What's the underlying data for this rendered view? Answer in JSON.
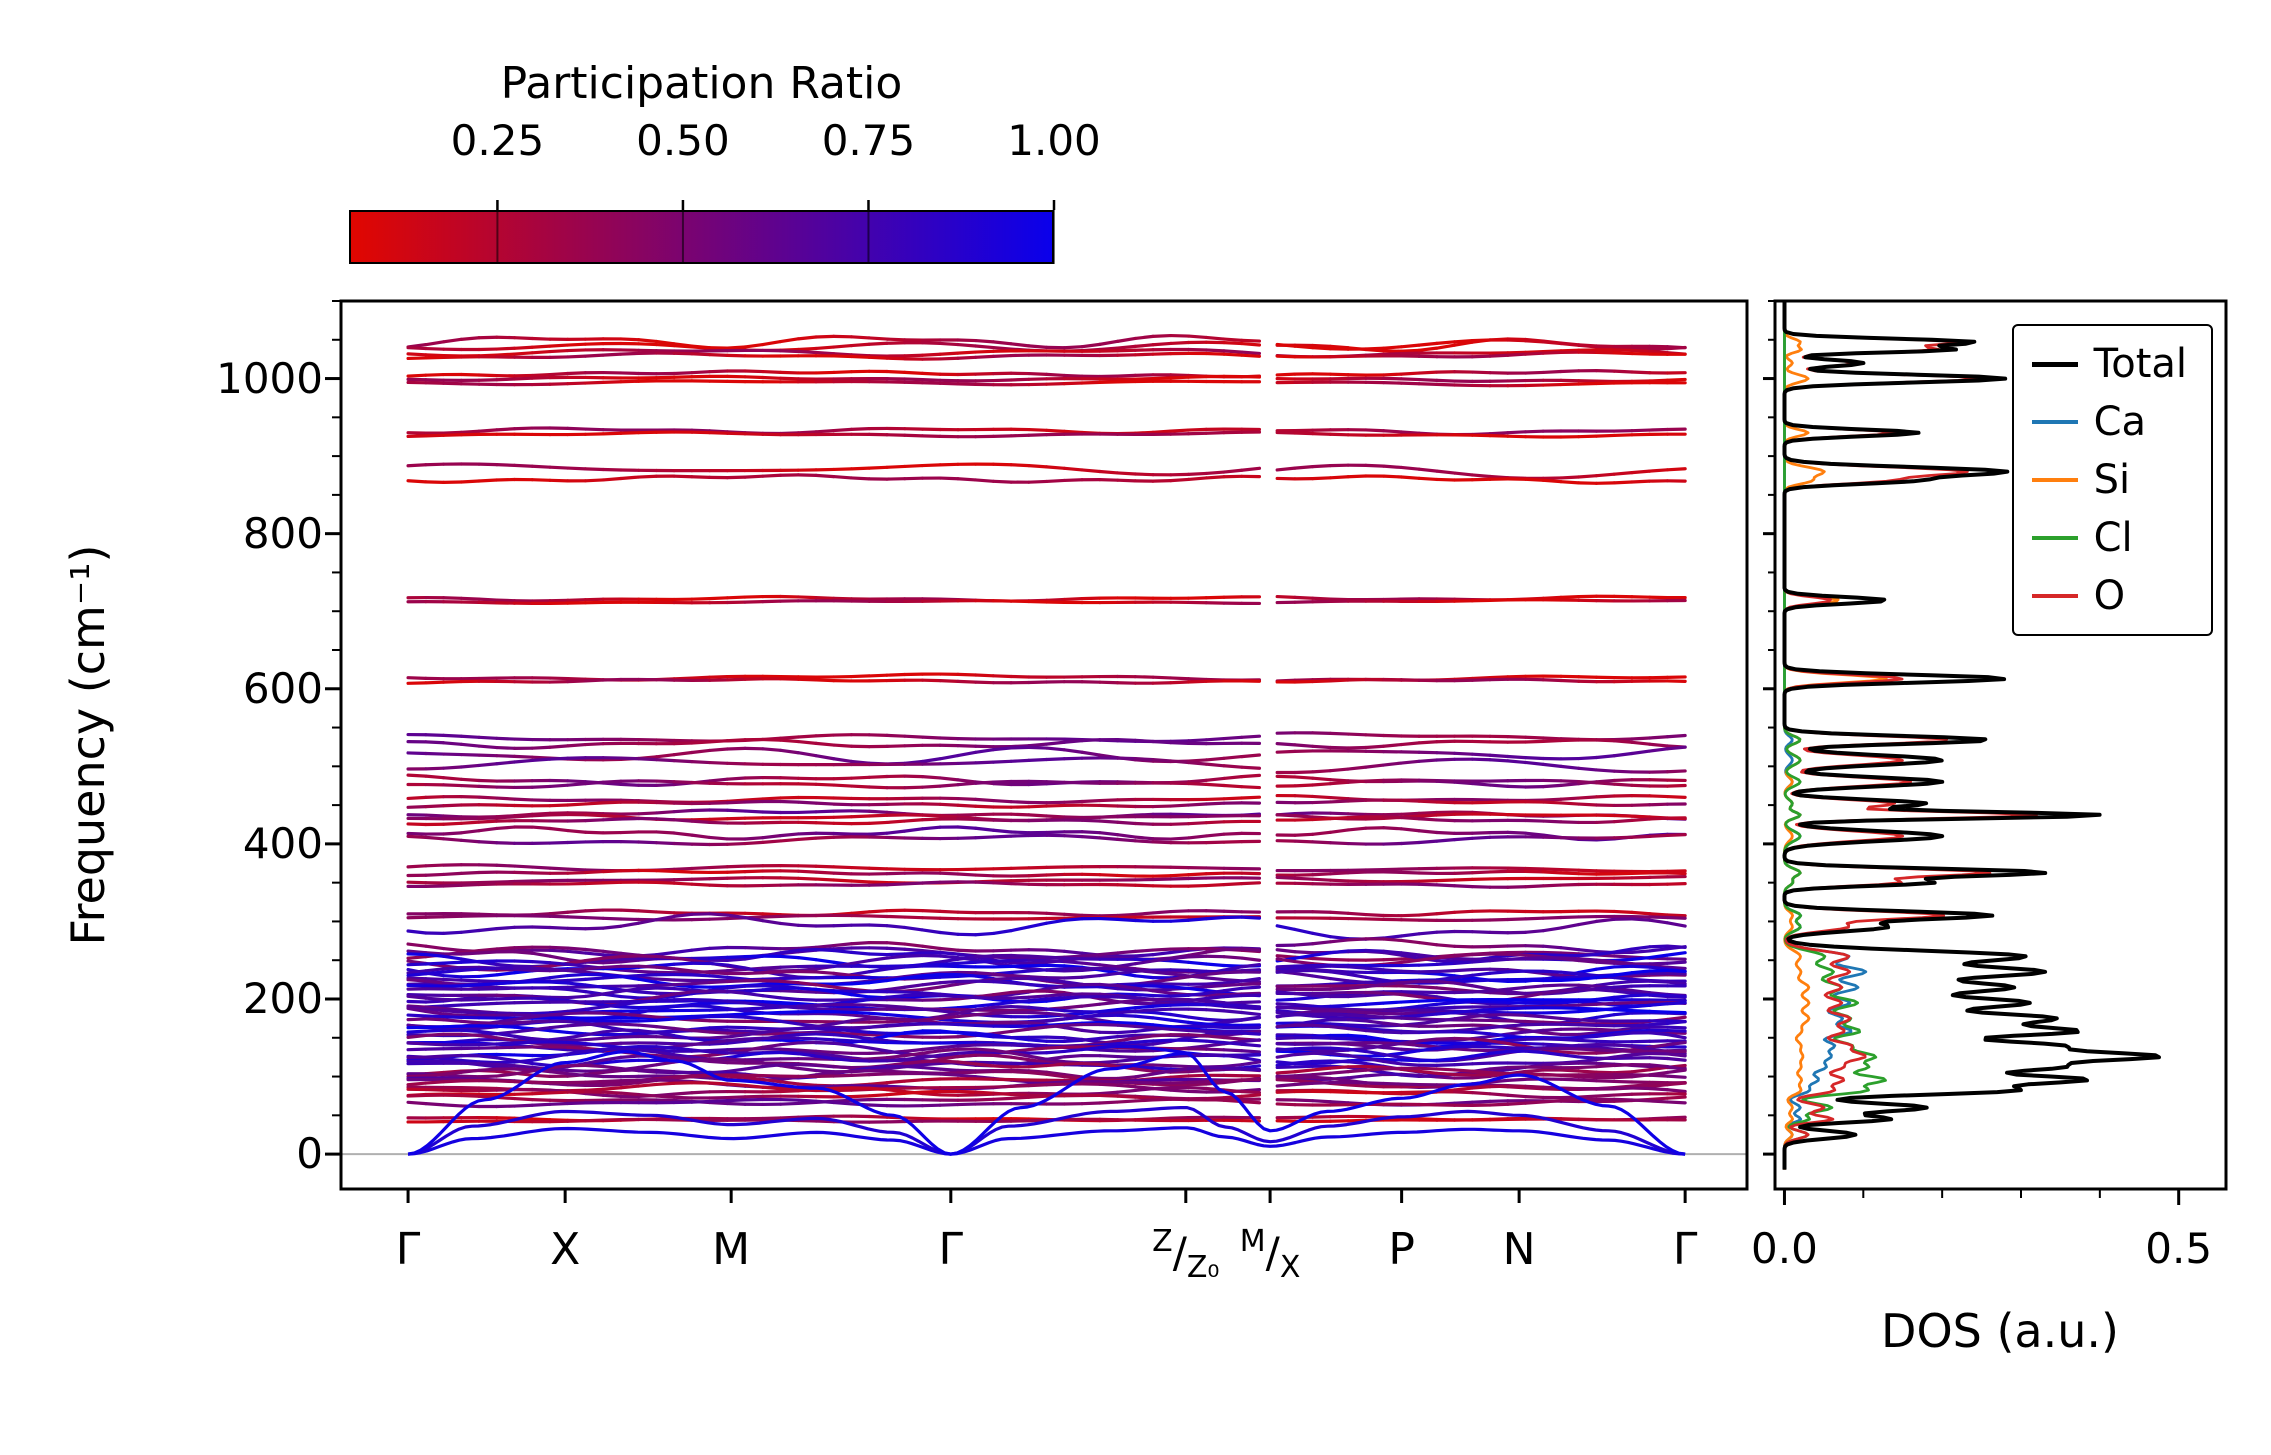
{
  "chart_data": {
    "type": "line",
    "description_visible": "Phonon band structure colored by participation ratio with element-projected density of states",
    "colorbar": {
      "title": "Participation Ratio",
      "tick_labels": [
        "0.25",
        "0.50",
        "0.75",
        "1.00"
      ],
      "tick_values": [
        0.25,
        0.5,
        0.75,
        1.0
      ],
      "vmin": 0.05,
      "vmax": 1.0,
      "color_low": "#e10600",
      "color_high": "#0a00eb"
    },
    "band_panel": {
      "ylabel": "Frequency (cm⁻¹)",
      "ylim": [
        -45,
        1100
      ],
      "yticks": [
        0,
        200,
        400,
        600,
        800,
        1000
      ],
      "ytick_minor_step": 50,
      "zero_line_color": "#b0b0b0",
      "kpoints": [
        {
          "label": "Γ",
          "pos": 0.0
        },
        {
          "label": "X",
          "pos": 0.123
        },
        {
          "label": "M",
          "pos": 0.253
        },
        {
          "label": "Γ",
          "pos": 0.425
        },
        {
          "label": "Z|Z₀",
          "pos": 0.609
        },
        {
          "label": "M|X",
          "pos": 0.675
        },
        {
          "label": "P",
          "pos": 0.778
        },
        {
          "label": "N",
          "pos": 0.87
        },
        {
          "label": "Γ",
          "pos": 1.0
        }
      ],
      "discontinuity_pos": 0.675,
      "bands": [
        {
          "f": 1048,
          "a": 9,
          "p": 0.22
        },
        {
          "f": 1041,
          "a": 6,
          "p": 0.18
        },
        {
          "f": 1034,
          "a": 5,
          "p": 0.26
        },
        {
          "f": 1029,
          "a": 4,
          "p": 0.2
        },
        {
          "f": 1006,
          "a": 4,
          "p": 0.2
        },
        {
          "f": 1000,
          "a": 3,
          "p": 0.22
        },
        {
          "f": 995,
          "a": 3,
          "p": 0.18
        },
        {
          "f": 933,
          "a": 4,
          "p": 0.28
        },
        {
          "f": 928,
          "a": 3,
          "p": 0.22
        },
        {
          "f": 884,
          "a": 9,
          "p": 0.22
        },
        {
          "f": 871,
          "a": 5,
          "p": 0.2
        },
        {
          "f": 716,
          "a": 3,
          "p": 0.2
        },
        {
          "f": 712,
          "a": 2,
          "p": 0.22
        },
        {
          "f": 615,
          "a": 4,
          "p": 0.2
        },
        {
          "f": 610,
          "a": 3,
          "p": 0.24
        },
        {
          "f": 536,
          "a": 5,
          "p": 0.48
        },
        {
          "f": 529,
          "a": 6,
          "p": 0.44
        },
        {
          "f": 514,
          "a": 11,
          "p": 0.52
        },
        {
          "f": 505,
          "a": 9,
          "p": 0.5
        },
        {
          "f": 482,
          "a": 7,
          "p": 0.42
        },
        {
          "f": 477,
          "a": 5,
          "p": 0.38
        },
        {
          "f": 457,
          "a": 4,
          "p": 0.3
        },
        {
          "f": 451,
          "a": 4,
          "p": 0.34
        },
        {
          "f": 439,
          "a": 5,
          "p": 0.5
        },
        {
          "f": 434,
          "a": 4,
          "p": 0.3
        },
        {
          "f": 429,
          "a": 4,
          "p": 0.34
        },
        {
          "f": 414,
          "a": 8,
          "p": 0.52
        },
        {
          "f": 405,
          "a": 7,
          "p": 0.48
        },
        {
          "f": 369,
          "a": 5,
          "p": 0.3
        },
        {
          "f": 362,
          "a": 4,
          "p": 0.26
        },
        {
          "f": 353,
          "a": 4,
          "p": 0.3
        },
        {
          "f": 348,
          "a": 3,
          "p": 0.34
        },
        {
          "f": 311,
          "a": 4,
          "p": 0.3
        },
        {
          "f": 305,
          "a": 3,
          "p": 0.34
        },
        {
          "f": 296,
          "a": 14,
          "p": 0.78
        },
        {
          "f": 264,
          "a": 9,
          "p": 0.6
        },
        {
          "f": 259,
          "a": 9,
          "p": 0.55
        },
        {
          "f": 255,
          "a": 10,
          "p": 0.7
        },
        {
          "f": 250,
          "a": 9,
          "p": 0.85
        },
        {
          "f": 246,
          "a": 10,
          "p": 0.6
        },
        {
          "f": 242,
          "a": 9,
          "p": 0.75
        },
        {
          "f": 238,
          "a": 11,
          "p": 0.9
        },
        {
          "f": 234,
          "a": 9,
          "p": 0.65
        },
        {
          "f": 230,
          "a": 10,
          "p": 0.8
        },
        {
          "f": 226,
          "a": 9,
          "p": 0.7
        },
        {
          "f": 222,
          "a": 10,
          "p": 0.9
        },
        {
          "f": 218,
          "a": 9,
          "p": 0.6
        },
        {
          "f": 214,
          "a": 10,
          "p": 0.8
        },
        {
          "f": 210,
          "a": 9,
          "p": 0.72
        },
        {
          "f": 206,
          "a": 10,
          "p": 0.88
        },
        {
          "f": 202,
          "a": 9,
          "p": 0.62
        },
        {
          "f": 198,
          "a": 10,
          "p": 0.8
        },
        {
          "f": 194,
          "a": 9,
          "p": 0.9
        },
        {
          "f": 190,
          "a": 10,
          "p": 0.68
        },
        {
          "f": 186,
          "a": 9,
          "p": 0.82
        },
        {
          "f": 182,
          "a": 10,
          "p": 0.75
        },
        {
          "f": 178,
          "a": 9,
          "p": 0.9
        },
        {
          "f": 174,
          "a": 10,
          "p": 0.6
        },
        {
          "f": 170,
          "a": 9,
          "p": 0.8
        },
        {
          "f": 166,
          "a": 10,
          "p": 0.7
        },
        {
          "f": 162,
          "a": 9,
          "p": 0.88
        },
        {
          "f": 158,
          "a": 10,
          "p": 0.62
        },
        {
          "f": 154,
          "a": 9,
          "p": 0.78
        },
        {
          "f": 150,
          "a": 10,
          "p": 0.9
        },
        {
          "f": 146,
          "a": 9,
          "p": 0.65
        },
        {
          "f": 142,
          "a": 10,
          "p": 0.8
        },
        {
          "f": 138,
          "a": 9,
          "p": 0.72
        },
        {
          "f": 134,
          "a": 10,
          "p": 0.55
        },
        {
          "f": 130,
          "a": 9,
          "p": 0.85
        },
        {
          "f": 126,
          "a": 10,
          "p": 0.68
        },
        {
          "f": 122,
          "a": 9,
          "p": 0.78
        },
        {
          "f": 118,
          "a": 10,
          "p": 0.6
        },
        {
          "f": 114,
          "a": 9,
          "p": 0.72
        },
        {
          "f": 110,
          "a": 10,
          "p": 0.5
        },
        {
          "f": 106,
          "a": 9,
          "p": 0.65
        },
        {
          "f": 102,
          "a": 8,
          "p": 0.45
        },
        {
          "f": 98,
          "a": 8,
          "p": 0.55
        },
        {
          "f": 94,
          "a": 7,
          "p": 0.42
        },
        {
          "f": 90,
          "a": 7,
          "p": 0.5
        },
        {
          "f": 86,
          "a": 6,
          "p": 0.4
        },
        {
          "f": 80,
          "a": 6,
          "p": 0.35
        },
        {
          "f": 76,
          "a": 5,
          "p": 0.3
        },
        {
          "f": 70,
          "a": 6,
          "p": 0.45
        },
        {
          "f": 66,
          "a": 5,
          "p": 0.5
        },
        {
          "f": 46,
          "a": 3,
          "p": 0.25
        },
        {
          "f": 43,
          "a": 2,
          "p": 0.28
        }
      ],
      "acoustic_bands": [
        {
          "p": 0.95,
          "points": [
            [
              0,
              0
            ],
            [
              0.05,
              20
            ],
            [
              0.123,
              33
            ],
            [
              0.19,
              28
            ],
            [
              0.253,
              20
            ],
            [
              0.32,
              28
            ],
            [
              0.38,
              18
            ],
            [
              0.425,
              0
            ],
            [
              0.47,
              20
            ],
            [
              0.55,
              30
            ],
            [
              0.609,
              34
            ],
            [
              0.64,
              22
            ],
            [
              0.675,
              10
            ],
            [
              0.72,
              22
            ],
            [
              0.778,
              28
            ],
            [
              0.83,
              32
            ],
            [
              0.87,
              30
            ],
            [
              0.94,
              18
            ],
            [
              1,
              0
            ]
          ]
        },
        {
          "p": 0.9,
          "points": [
            [
              0,
              0
            ],
            [
              0.05,
              36
            ],
            [
              0.123,
              55
            ],
            [
              0.19,
              50
            ],
            [
              0.253,
              38
            ],
            [
              0.32,
              46
            ],
            [
              0.38,
              28
            ],
            [
              0.425,
              0
            ],
            [
              0.47,
              36
            ],
            [
              0.55,
              55
            ],
            [
              0.609,
              60
            ],
            [
              0.64,
              35
            ],
            [
              0.675,
              16
            ],
            [
              0.72,
              36
            ],
            [
              0.778,
              48
            ],
            [
              0.83,
              55
            ],
            [
              0.87,
              50
            ],
            [
              0.94,
              30
            ],
            [
              1,
              0
            ]
          ]
        },
        {
          "p": 0.98,
          "points": [
            [
              0,
              0
            ],
            [
              0.06,
              70
            ],
            [
              0.123,
              118
            ],
            [
              0.17,
              132
            ],
            [
              0.21,
              120
            ],
            [
              0.253,
              95
            ],
            [
              0.32,
              85
            ],
            [
              0.38,
              50
            ],
            [
              0.425,
              0
            ],
            [
              0.48,
              60
            ],
            [
              0.55,
              110
            ],
            [
              0.609,
              130
            ],
            [
              0.64,
              80
            ],
            [
              0.675,
              30
            ],
            [
              0.72,
              55
            ],
            [
              0.778,
              72
            ],
            [
              0.83,
              90
            ],
            [
              0.87,
              102
            ],
            [
              0.94,
              62
            ],
            [
              1,
              0
            ]
          ]
        }
      ]
    },
    "dos_panel": {
      "xlabel": "DOS (a.u.)",
      "xlim": [
        -0.012,
        0.56
      ],
      "xticks": [
        {
          "label": "0.0",
          "value": 0.0
        },
        {
          "label": "0.5",
          "value": 0.5
        }
      ],
      "xtick_minor_step": 0.1,
      "legend": [
        {
          "label": "Total",
          "color": "#000000"
        },
        {
          "label": "Ca",
          "color": "#1f77b4"
        },
        {
          "label": "Si",
          "color": "#ff7f0e"
        },
        {
          "label": "Cl",
          "color": "#2ca02c"
        },
        {
          "label": "O",
          "color": "#d62728"
        }
      ],
      "peaks": [
        {
          "f": 1047,
          "w": 6,
          "total": 0.24,
          "ca": 0.0,
          "si": 0.02,
          "cl": 0.0,
          "o": 0.22
        },
        {
          "f": 1037,
          "w": 5,
          "total": 0.2,
          "ca": 0.0,
          "si": 0.02,
          "cl": 0.0,
          "o": 0.18
        },
        {
          "f": 1020,
          "w": 6,
          "total": 0.1,
          "ca": 0.0,
          "si": 0.01,
          "cl": 0.0,
          "o": 0.09
        },
        {
          "f": 1000,
          "w": 7,
          "total": 0.28,
          "ca": 0.0,
          "si": 0.03,
          "cl": 0.0,
          "o": 0.25
        },
        {
          "f": 930,
          "w": 6,
          "total": 0.17,
          "ca": 0.0,
          "si": 0.03,
          "cl": 0.0,
          "o": 0.14
        },
        {
          "f": 880,
          "w": 8,
          "total": 0.28,
          "ca": 0.0,
          "si": 0.05,
          "cl": 0.0,
          "o": 0.23
        },
        {
          "f": 868,
          "w": 6,
          "total": 0.14,
          "ca": 0.0,
          "si": 0.03,
          "cl": 0.0,
          "o": 0.11
        },
        {
          "f": 714,
          "w": 6,
          "total": 0.13,
          "ca": 0.0,
          "si": 0.07,
          "cl": 0.0,
          "o": 0.06
        },
        {
          "f": 613,
          "w": 7,
          "total": 0.28,
          "ca": 0.0,
          "si": 0.13,
          "cl": 0.0,
          "o": 0.15
        },
        {
          "f": 534,
          "w": 7,
          "total": 0.26,
          "ca": 0.01,
          "si": 0.02,
          "cl": 0.02,
          "o": 0.21
        },
        {
          "f": 508,
          "w": 9,
          "total": 0.2,
          "ca": 0.01,
          "si": 0.02,
          "cl": 0.02,
          "o": 0.15
        },
        {
          "f": 480,
          "w": 8,
          "total": 0.2,
          "ca": 0.01,
          "si": 0.01,
          "cl": 0.02,
          "o": 0.16
        },
        {
          "f": 452,
          "w": 7,
          "total": 0.18,
          "ca": 0.01,
          "si": 0.01,
          "cl": 0.01,
          "o": 0.14
        },
        {
          "f": 437,
          "w": 6,
          "total": 0.4,
          "ca": 0.02,
          "si": 0.02,
          "cl": 0.02,
          "o": 0.32
        },
        {
          "f": 410,
          "w": 9,
          "total": 0.2,
          "ca": 0.02,
          "si": 0.01,
          "cl": 0.02,
          "o": 0.15
        },
        {
          "f": 363,
          "w": 7,
          "total": 0.33,
          "ca": 0.02,
          "si": 0.02,
          "cl": 0.02,
          "o": 0.26
        },
        {
          "f": 350,
          "w": 6,
          "total": 0.18,
          "ca": 0.01,
          "si": 0.01,
          "cl": 0.01,
          "o": 0.14
        },
        {
          "f": 308,
          "w": 7,
          "total": 0.26,
          "ca": 0.02,
          "si": 0.01,
          "cl": 0.02,
          "o": 0.2
        },
        {
          "f": 293,
          "w": 8,
          "total": 0.13,
          "ca": 0.02,
          "si": 0.01,
          "cl": 0.02,
          "o": 0.08
        },
        {
          "f": 255,
          "w": 10,
          "total": 0.3,
          "ca": 0.08,
          "si": 0.02,
          "cl": 0.05,
          "o": 0.08
        },
        {
          "f": 235,
          "w": 10,
          "total": 0.32,
          "ca": 0.1,
          "si": 0.02,
          "cl": 0.06,
          "o": 0.08
        },
        {
          "f": 215,
          "w": 10,
          "total": 0.28,
          "ca": 0.09,
          "si": 0.03,
          "cl": 0.07,
          "o": 0.07
        },
        {
          "f": 195,
          "w": 10,
          "total": 0.3,
          "ca": 0.08,
          "si": 0.03,
          "cl": 0.09,
          "o": 0.07
        },
        {
          "f": 175,
          "w": 10,
          "total": 0.33,
          "ca": 0.07,
          "si": 0.03,
          "cl": 0.08,
          "o": 0.08
        },
        {
          "f": 158,
          "w": 9,
          "total": 0.35,
          "ca": 0.08,
          "si": 0.02,
          "cl": 0.09,
          "o": 0.07
        },
        {
          "f": 140,
          "w": 9,
          "total": 0.33,
          "ca": 0.06,
          "si": 0.02,
          "cl": 0.08,
          "o": 0.08
        },
        {
          "f": 126,
          "w": 8,
          "total": 0.42,
          "ca": 0.05,
          "si": 0.02,
          "cl": 0.1,
          "o": 0.09
        },
        {
          "f": 112,
          "w": 9,
          "total": 0.33,
          "ca": 0.05,
          "si": 0.02,
          "cl": 0.1,
          "o": 0.07
        },
        {
          "f": 96,
          "w": 8,
          "total": 0.36,
          "ca": 0.04,
          "si": 0.02,
          "cl": 0.12,
          "o": 0.07
        },
        {
          "f": 82,
          "w": 8,
          "total": 0.28,
          "ca": 0.03,
          "si": 0.02,
          "cl": 0.1,
          "o": 0.06
        },
        {
          "f": 60,
          "w": 8,
          "total": 0.18,
          "ca": 0.02,
          "si": 0.01,
          "cl": 0.06,
          "o": 0.05
        },
        {
          "f": 45,
          "w": 6,
          "total": 0.13,
          "ca": 0.02,
          "si": 0.01,
          "cl": 0.03,
          "o": 0.06
        },
        {
          "f": 25,
          "w": 7,
          "total": 0.09,
          "ca": 0.01,
          "si": 0.01,
          "cl": 0.03,
          "o": 0.03
        }
      ]
    }
  }
}
